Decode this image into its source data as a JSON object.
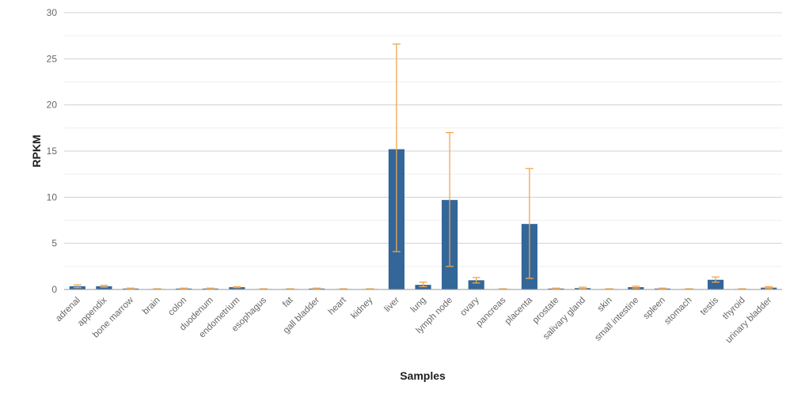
{
  "chart_data": {
    "type": "bar",
    "xlabel": "Samples",
    "ylabel": "RPKM",
    "ylim": [
      0,
      30
    ],
    "yticks": [
      0,
      5,
      10,
      15,
      20,
      25,
      30
    ],
    "grid": true,
    "categories": [
      "adrenal",
      "appendix",
      "bone marrow",
      "brain",
      "colon",
      "duodenum",
      "endometrium",
      "esophagus",
      "fat",
      "gall bladder",
      "heart",
      "kidney",
      "liver",
      "lung",
      "lymph node",
      "ovary",
      "pancreas",
      "placenta",
      "prostate",
      "salivary gland",
      "skin",
      "small intestine",
      "spleen",
      "stomach",
      "testis",
      "thyroid",
      "urinary bladder"
    ],
    "series": [
      {
        "values": [
          0.35,
          0.35,
          0.1,
          0.05,
          0.1,
          0.1,
          0.25,
          0.05,
          0.05,
          0.1,
          0.05,
          0.05,
          15.2,
          0.5,
          9.7,
          1.0,
          0.05,
          7.1,
          0.1,
          0.15,
          0.05,
          0.25,
          0.1,
          0.05,
          1.05,
          0.05,
          0.2
        ],
        "error_low": [
          0.2,
          0.25,
          0.05,
          0.02,
          0.05,
          0.05,
          0.2,
          0.02,
          0.02,
          0.05,
          0.02,
          0.02,
          4.1,
          0.3,
          2.5,
          0.7,
          0.02,
          1.2,
          0.05,
          0.1,
          0.02,
          0.15,
          0.05,
          0.02,
          0.8,
          0.02,
          0.1
        ],
        "error_high": [
          0.5,
          0.45,
          0.15,
          0.08,
          0.15,
          0.15,
          0.3,
          0.08,
          0.08,
          0.15,
          0.08,
          0.08,
          26.6,
          0.8,
          17.0,
          1.3,
          0.08,
          13.1,
          0.15,
          0.25,
          0.08,
          0.35,
          0.15,
          0.08,
          1.35,
          0.08,
          0.3
        ]
      }
    ],
    "colors": {
      "bar": "#336699",
      "error": "#f0a64e",
      "grid": "#d0d0d0",
      "axis": "#999999"
    }
  }
}
